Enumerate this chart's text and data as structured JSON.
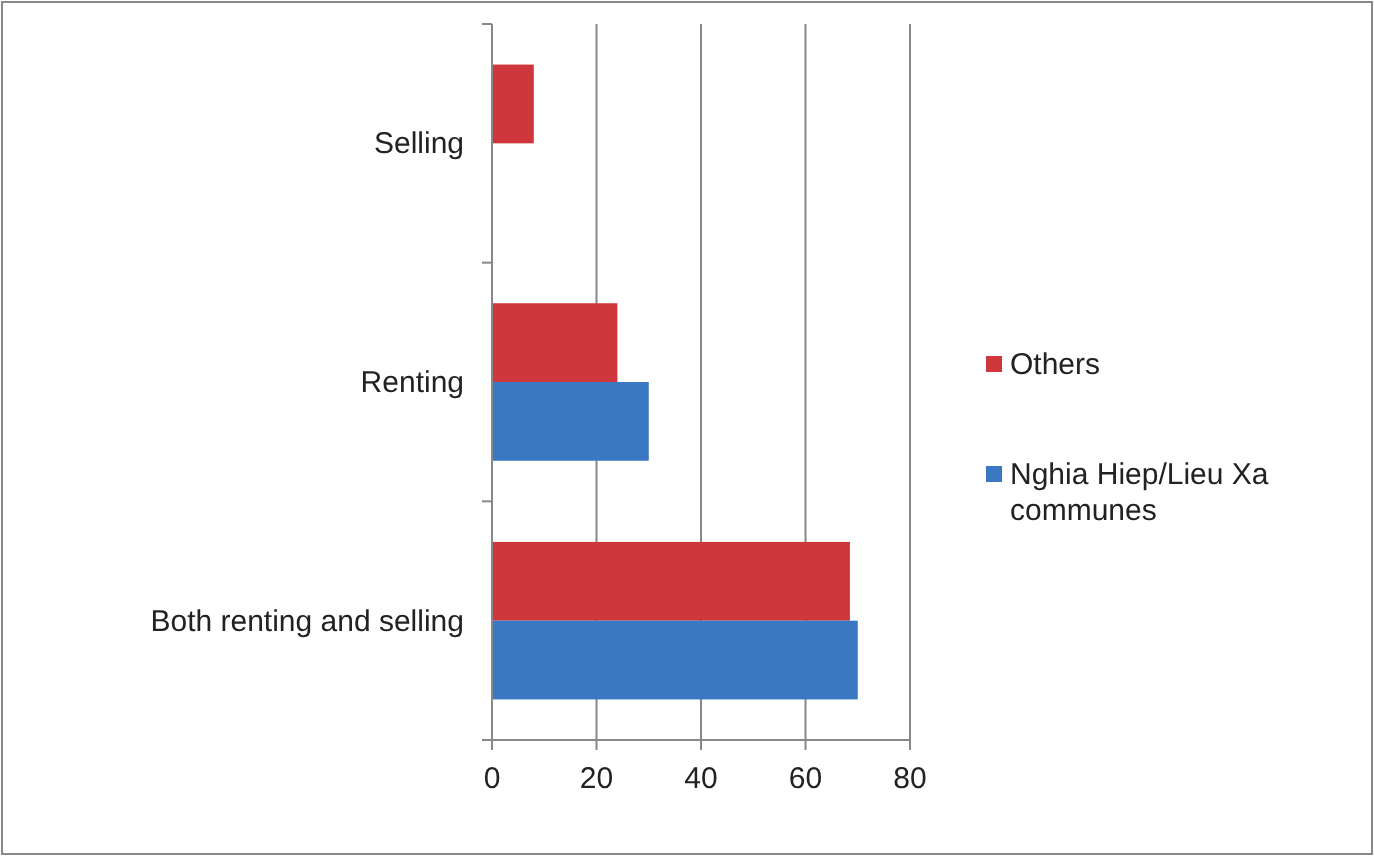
{
  "chart_data": {
    "type": "bar",
    "orientation": "horizontal",
    "categories": [
      "Selling",
      "Renting",
      "Both renting and selling"
    ],
    "series": [
      {
        "name": "Others",
        "color": "#d0373c",
        "values": [
          8,
          24,
          68.5
        ]
      },
      {
        "name": "Nghia Hiep/Lieu Xa communes",
        "color": "#3a78c3",
        "values": [
          null,
          30,
          70
        ]
      }
    ],
    "xlim": [
      0,
      80
    ],
    "xticks": [
      0,
      20,
      40,
      60,
      80
    ],
    "grid": "x",
    "legend": "right"
  }
}
